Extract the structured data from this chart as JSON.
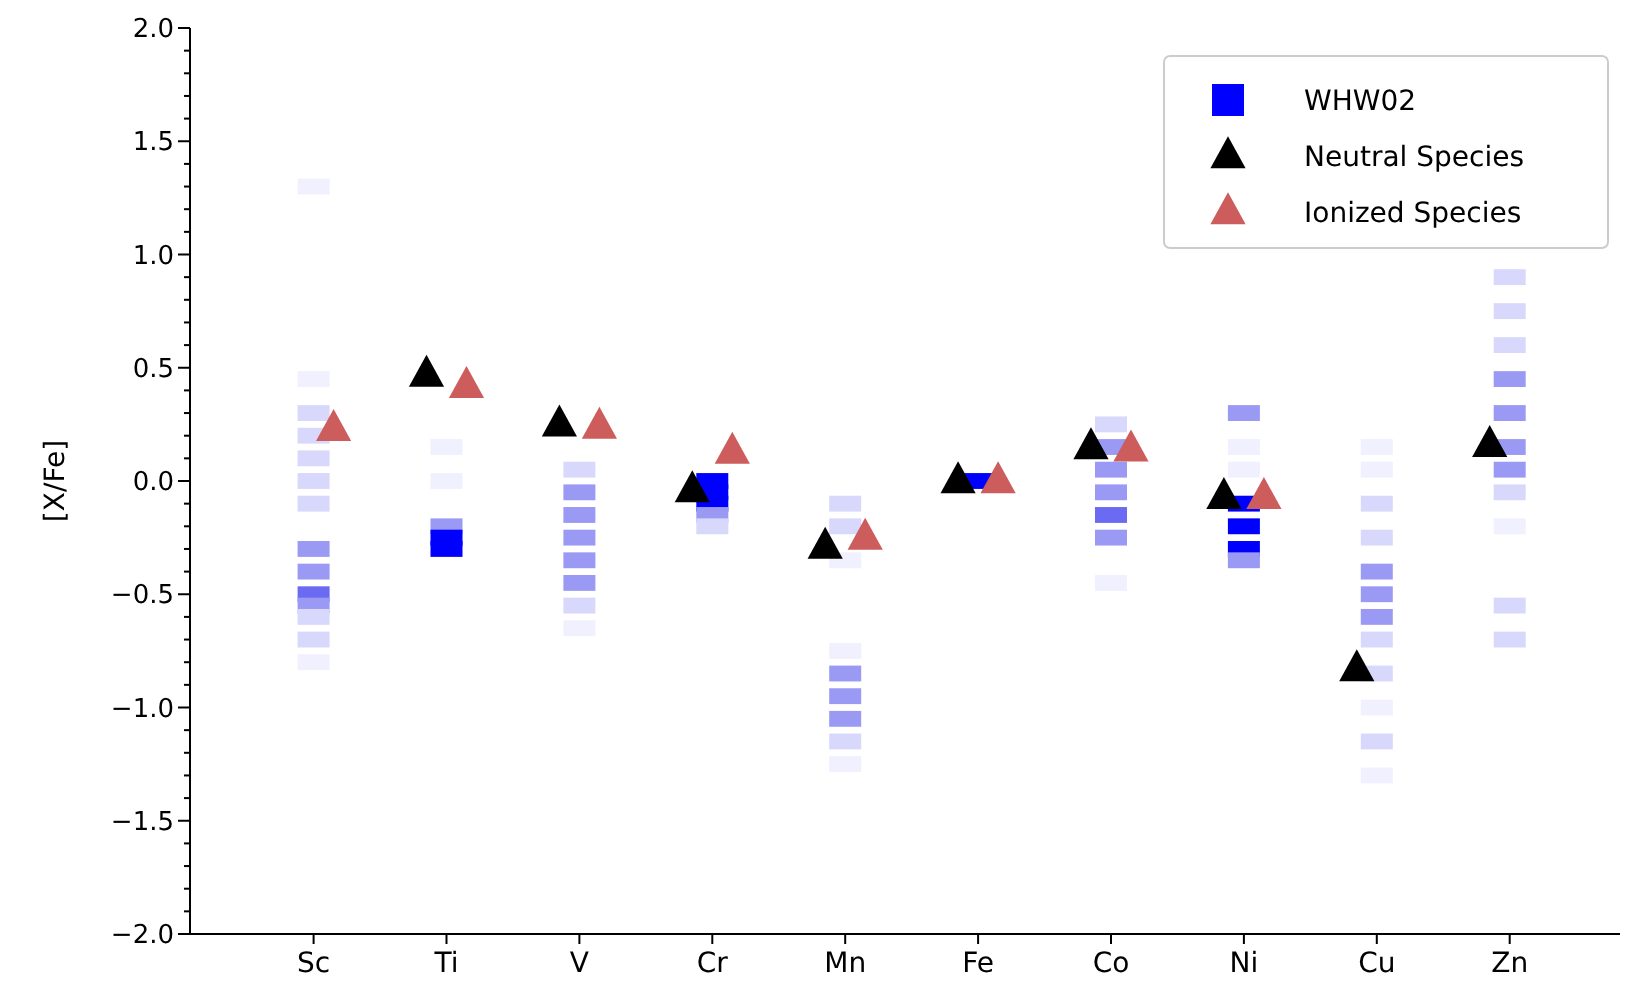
{
  "chart_data": {
    "type": "scatter",
    "ylabel": "[X/Fe]",
    "categories": [
      "Sc",
      "Ti",
      "V",
      "Cr",
      "Mn",
      "Fe",
      "Co",
      "Ni",
      "Cu",
      "Zn"
    ],
    "ylim": [
      -2.0,
      2.0
    ],
    "yticks": [
      {
        "value": -2,
        "label": "−2.0"
      },
      {
        "value": -1.5,
        "label": "−1.5"
      },
      {
        "value": -1,
        "label": "−1.0"
      },
      {
        "value": -0.5,
        "label": "−0.5"
      },
      {
        "value": 0,
        "label": "0.0"
      },
      {
        "value": 0.5,
        "label": "0.5"
      },
      {
        "value": 1,
        "label": "1.0"
      },
      {
        "value": 1.5,
        "label": "1.5"
      },
      {
        "value": 2,
        "label": "2.0"
      },
      {
        "value": -1.9,
        "label": null
      },
      {
        "value": -1.8,
        "label": null
      },
      {
        "value": -1.7,
        "label": null
      },
      {
        "value": -1.6,
        "label": null
      },
      {
        "value": -1.4,
        "label": null
      },
      {
        "value": -1.3,
        "label": null
      },
      {
        "value": -1.2,
        "label": null
      },
      {
        "value": -1.1,
        "label": null
      },
      {
        "value": -0.9,
        "label": null
      },
      {
        "value": -0.8,
        "label": null
      },
      {
        "value": -0.7,
        "label": null
      },
      {
        "value": -0.6,
        "label": null
      },
      {
        "value": -0.4,
        "label": null
      },
      {
        "value": -0.3,
        "label": null
      },
      {
        "value": -0.2,
        "label": null
      },
      {
        "value": -0.1,
        "label": null
      },
      {
        "value": 0.1,
        "label": null
      },
      {
        "value": 0.2,
        "label": null
      },
      {
        "value": 0.3,
        "label": null
      },
      {
        "value": 0.4,
        "label": null
      },
      {
        "value": 0.6,
        "label": null
      },
      {
        "value": 0.7,
        "label": null
      },
      {
        "value": 0.8,
        "label": null
      },
      {
        "value": 0.9,
        "label": null
      },
      {
        "value": 1.1,
        "label": null
      },
      {
        "value": 1.2,
        "label": null
      },
      {
        "value": 1.3,
        "label": null
      },
      {
        "value": 1.4,
        "label": null
      },
      {
        "value": 1.6,
        "label": null
      },
      {
        "value": 1.7,
        "label": null
      },
      {
        "value": 1.8,
        "label": null
      },
      {
        "value": 1.9,
        "label": null
      }
    ],
    "legend": "top right",
    "grid": false,
    "series": [
      {
        "name": "WHW02",
        "color": "#0000ff",
        "marker": "square",
        "x": [
          "Sc",
          "Sc",
          "Sc",
          "Sc",
          "Sc",
          "Sc",
          "Sc",
          "Sc",
          "Sc",
          "Sc",
          "Sc",
          "Sc",
          "Sc",
          "Sc",
          "Ti",
          "Ti",
          "Ti",
          "Ti",
          "Ti",
          "V",
          "V",
          "V",
          "V",
          "V",
          "V",
          "V",
          "V",
          "Cr",
          "Cr",
          "Cr",
          "Cr",
          "Cr",
          "Mn",
          "Mn",
          "Mn",
          "Mn",
          "Mn",
          "Mn",
          "Mn",
          "Mn",
          "Mn",
          "Fe",
          "Co",
          "Co",
          "Co",
          "Co",
          "Co",
          "Co",
          "Co",
          "Ni",
          "Ni",
          "Ni",
          "Ni",
          "Ni",
          "Ni",
          "Ni",
          "Cu",
          "Cu",
          "Cu",
          "Cu",
          "Cu",
          "Cu",
          "Cu",
          "Cu",
          "Cu",
          "Cu",
          "Cu",
          "Cu",
          "Zn",
          "Zn",
          "Zn",
          "Zn",
          "Zn",
          "Zn",
          "Zn",
          "Zn",
          "Zn",
          "Zn",
          "Zn"
        ],
        "values": [
          1.3,
          0.45,
          0.3,
          0.2,
          0.1,
          0.0,
          -0.1,
          -0.3,
          -0.4,
          -0.5,
          -0.55,
          -0.6,
          -0.7,
          -0.8,
          0.15,
          0.0,
          -0.2,
          -0.25,
          -0.3,
          0.05,
          -0.05,
          -0.15,
          -0.25,
          -0.35,
          -0.45,
          -0.55,
          -0.65,
          0.0,
          -0.05,
          -0.1,
          -0.15,
          -0.2,
          -0.1,
          -0.2,
          -0.35,
          -0.75,
          -0.85,
          -0.95,
          -1.05,
          -1.15,
          -1.25,
          0.0,
          0.25,
          0.15,
          0.05,
          -0.05,
          -0.15,
          -0.25,
          -0.45,
          0.3,
          0.15,
          0.05,
          -0.1,
          -0.2,
          -0.3,
          -0.35,
          0.15,
          0.05,
          -0.1,
          -0.25,
          -0.4,
          -0.5,
          -0.6,
          -0.7,
          -0.85,
          -1.0,
          -1.15,
          -1.3,
          0.9,
          0.75,
          0.6,
          0.45,
          0.3,
          0.15,
          0.05,
          -0.05,
          -0.2,
          -0.55,
          -0.7
        ],
        "colors": [
          "#f0f0ff",
          "#f0f0ff",
          "#d8d8fc",
          "#d8d8fc",
          "#d8d8fc",
          "#d8d8fc",
          "#d8d8fc",
          "#9a9af5",
          "#9a9af5",
          "#6a6af2",
          "#9a9af5",
          "#d8d8fc",
          "#d8d8fc",
          "#f0f0ff",
          "#f0f0ff",
          "#f0f0ff",
          "#9a9af5",
          "#0000ff",
          "#0000ff",
          "#d8d8fc",
          "#9a9af5",
          "#9a9af5",
          "#9a9af5",
          "#9a9af5",
          "#9a9af5",
          "#d8d8fc",
          "#f0f0ff",
          "#0000ff",
          "#0000ff",
          "#0000ff",
          "#9a9af5",
          "#d8d8fc",
          "#d8d8fc",
          "#d8d8fc",
          "#f0f0ff",
          "#f0f0ff",
          "#9a9af5",
          "#9a9af5",
          "#9a9af5",
          "#d8d8fc",
          "#f0f0ff",
          "#0000ff",
          "#d8d8fc",
          "#9a9af5",
          "#9a9af5",
          "#9a9af5",
          "#6a6af2",
          "#9a9af5",
          "#f0f0ff",
          "#9a9af5",
          "#f0f0ff",
          "#f0f0ff",
          "#0000ff",
          "#0000ff",
          "#0000ff",
          "#9a9af5",
          "#f0f0ff",
          "#f0f0ff",
          "#d8d8fc",
          "#d8d8fc",
          "#9a9af5",
          "#9a9af5",
          "#9a9af5",
          "#d8d8fc",
          "#d8d8fc",
          "#f0f0ff",
          "#d8d8fc",
          "#f0f0ff",
          "#d8d8fc",
          "#d8d8fc",
          "#d8d8fc",
          "#9a9af5",
          "#9a9af5",
          "#9a9af5",
          "#9a9af5",
          "#d8d8fc",
          "#f0f0ff",
          "#d8d8fc",
          "#d8d8fc"
        ]
      },
      {
        "name": "Neutral Species",
        "color": "#000000",
        "marker": "triangle",
        "values": [
          null,
          0.47,
          0.25,
          -0.04,
          -0.29,
          0.0,
          0.15,
          -0.07,
          -0.83,
          0.16
        ]
      },
      {
        "name": "Ionized Species",
        "color": "#cd5c5c",
        "marker": "triangle",
        "values": [
          0.23,
          0.42,
          0.24,
          0.13,
          -0.25,
          0.0,
          0.14,
          -0.07,
          null,
          null
        ]
      }
    ]
  }
}
